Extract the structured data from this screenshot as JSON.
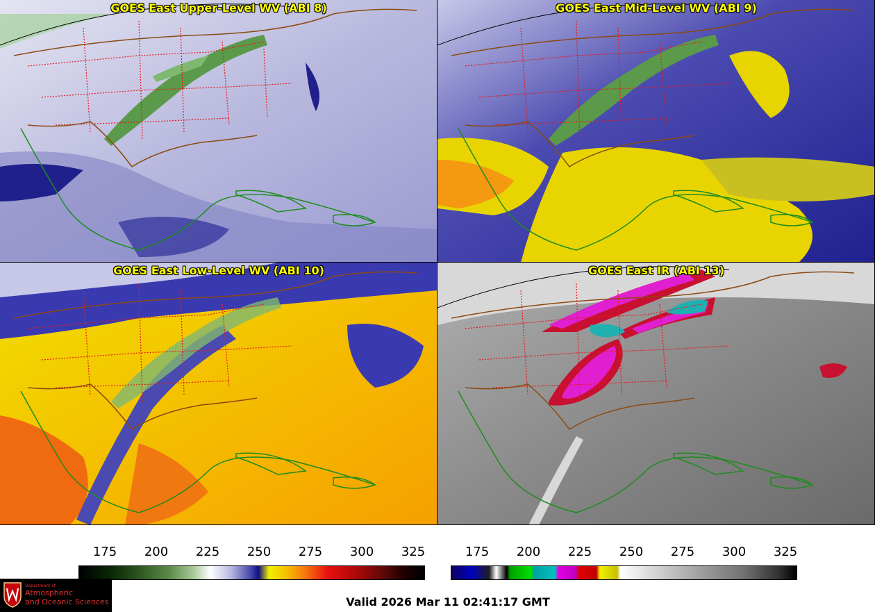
{
  "panels": [
    {
      "title": "GOES East Upper-Level WV (ABI 8)",
      "palette": "wv-upper"
    },
    {
      "title": "GOES East Mid-Level WV (ABI 9)",
      "palette": "wv-mid"
    },
    {
      "title": "GOES East Low-Level WV (ABI 10)",
      "palette": "wv-low"
    },
    {
      "title": "GOES East IR (ABI 13)",
      "palette": "ir"
    }
  ],
  "colorbars": {
    "wv": {
      "ticks": [
        "175",
        "200",
        "225",
        "250",
        "275",
        "300",
        "325"
      ]
    },
    "ir": {
      "ticks": [
        "175",
        "200",
        "225",
        "250",
        "275",
        "300",
        "325"
      ]
    }
  },
  "colors": {
    "title": "#ffff00",
    "state_borders": "#e8191b",
    "country_borders": "#8b4a10",
    "coastlines": "#1f8c1f"
  },
  "logo": {
    "line1": "Department of",
    "line2": "Atmospheric",
    "line3": "and Oceanic Sciences",
    "icon": "uw-crest-icon"
  },
  "footer": {
    "valid": "Valid 2026 Mar 11 02:41:17 GMT"
  }
}
